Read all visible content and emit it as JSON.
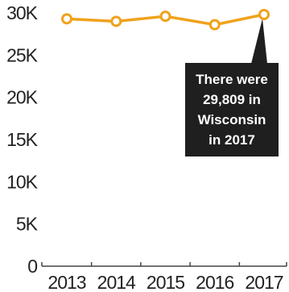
{
  "chart_data": {
    "type": "line",
    "x": [
      "2013",
      "2014",
      "2015",
      "2016",
      "2017"
    ],
    "series": [
      {
        "values": [
          29300,
          29000,
          29600,
          28600,
          29809
        ]
      }
    ],
    "yticks": [
      0,
      5000,
      10000,
      15000,
      20000,
      25000,
      30000
    ],
    "ytick_labels": [
      "0",
      "5K",
      "10K",
      "15K",
      "20K",
      "25K",
      "30K"
    ],
    "ylim": [
      0,
      30000
    ],
    "grid": false,
    "line_color": "#f0a21b",
    "marker": "open-circle",
    "annotation": {
      "target": "2017",
      "lines": [
        "There were",
        "29,809 in",
        "Wisconsin",
        "in 2017"
      ],
      "background": "#1f1f1f"
    }
  }
}
